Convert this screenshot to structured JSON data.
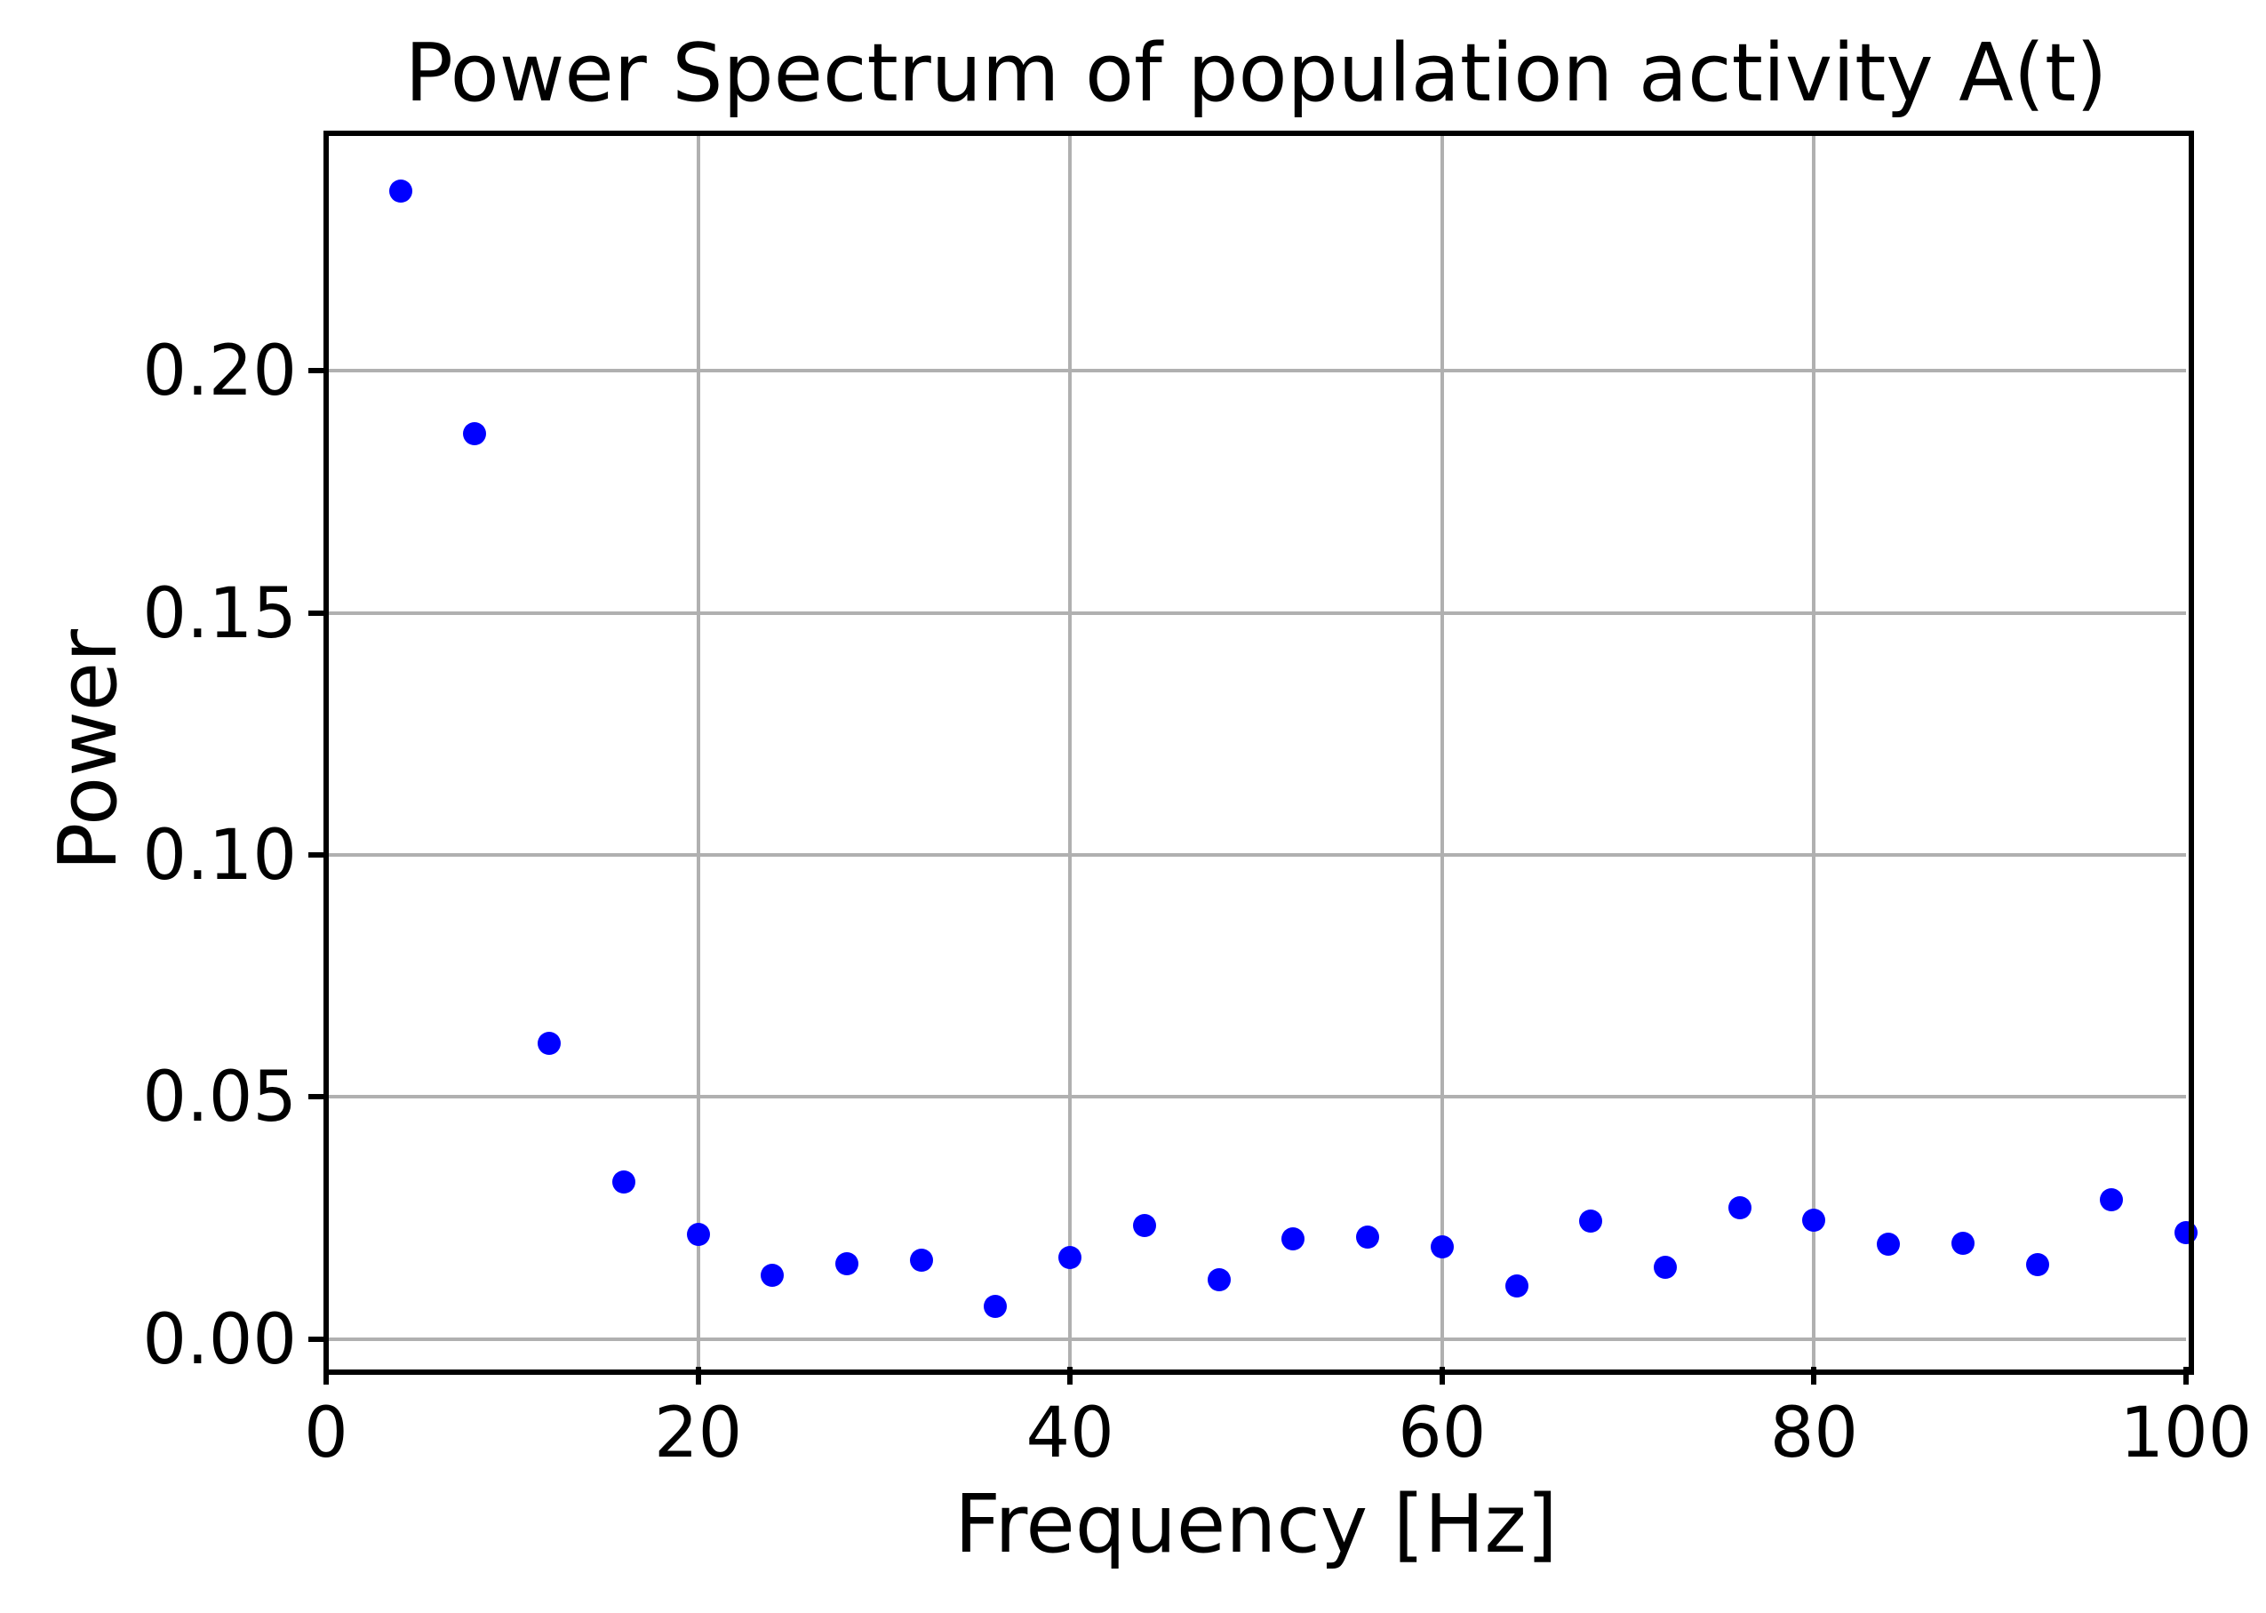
{
  "chart_data": {
    "type": "scatter",
    "title": "Power Spectrum of population activity A(t)",
    "xlabel": "Frequency [Hz]",
    "ylabel": "Power",
    "x": [
      4,
      8,
      12,
      16,
      20,
      24,
      28,
      32,
      36,
      40,
      44,
      48,
      52,
      56,
      60,
      64,
      68,
      72,
      76,
      80,
      84,
      88,
      92,
      96,
      100
    ],
    "y": [
      0.2371,
      0.187,
      0.0611,
      0.0325,
      0.0217,
      0.0132,
      0.0156,
      0.0163,
      0.0068,
      0.0169,
      0.0235,
      0.0122,
      0.0207,
      0.021,
      0.0191,
      0.011,
      0.0244,
      0.0149,
      0.0272,
      0.0246,
      0.0196,
      0.0198,
      0.0154,
      0.0288,
      0.022
    ],
    "xlim": [
      0,
      100
    ],
    "ylim": [
      -0.0057,
      0.249
    ],
    "xticks": [
      0,
      20,
      40,
      60,
      80,
      100
    ],
    "xtick_labels": [
      "0",
      "20",
      "40",
      "60",
      "80",
      "100"
    ],
    "yticks": [
      0,
      0.05,
      0.1,
      0.15,
      0.2
    ],
    "ytick_labels": [
      "0.00",
      "0.05",
      "0.10",
      "0.15",
      "0.20"
    ],
    "grid": true,
    "legend": "none",
    "marker_color": "#0000ff",
    "grid_color": "#b0b0b0",
    "axis_color": "#000000"
  }
}
